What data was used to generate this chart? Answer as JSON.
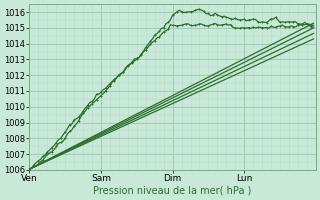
{
  "title": "",
  "xlabel": "Pression niveau de la mer( hPa )",
  "ylabel": "",
  "ylim": [
    1006,
    1016.5
  ],
  "yticks": [
    1006,
    1007,
    1008,
    1009,
    1010,
    1011,
    1012,
    1013,
    1014,
    1015,
    1016
  ],
  "bg_color": "#c8e8d8",
  "grid_major_color": "#9ec8b4",
  "grid_minor_color": "#b8daca",
  "line_color": "#2d6e2d",
  "day_labels": [
    "Ven",
    "Sam",
    "Dim",
    "Lun"
  ],
  "day_positions": [
    0,
    32,
    64,
    96
  ],
  "xlim": [
    0,
    128
  ],
  "n_points": 128,
  "figsize": [
    3.2,
    2.0
  ],
  "dpi": 100
}
